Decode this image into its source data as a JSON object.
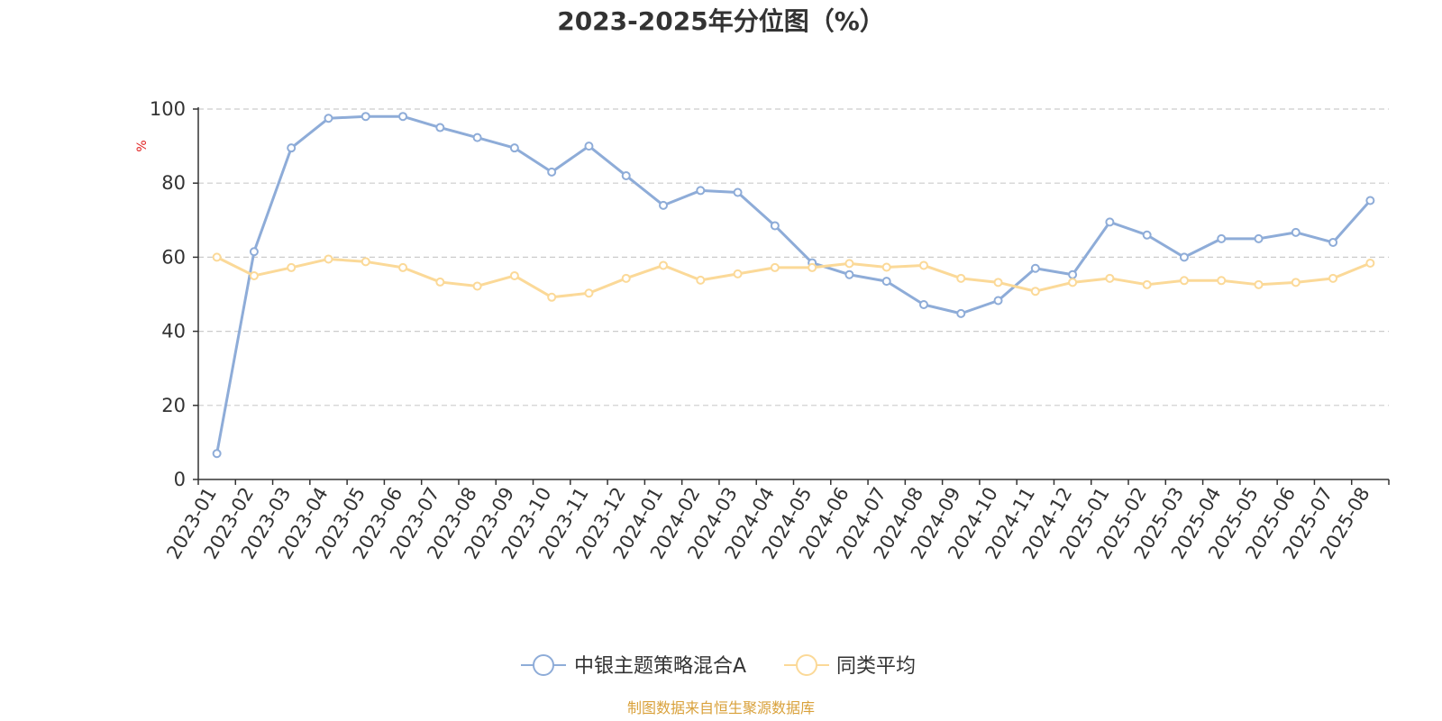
{
  "chart_data": {
    "type": "line",
    "title": "2023-2025年分位图（%）",
    "ylabel": "%",
    "ylim": [
      0,
      100
    ],
    "yticks": [
      0,
      20,
      40,
      60,
      80,
      100
    ],
    "grid": true,
    "legend_position": "bottom-center",
    "categories": [
      "2023-01",
      "2023-02",
      "2023-03",
      "2023-04",
      "2023-05",
      "2023-06",
      "2023-07",
      "2023-08",
      "2023-09",
      "2023-10",
      "2023-11",
      "2023-12",
      "2024-01",
      "2024-02",
      "2024-03",
      "2024-04",
      "2024-05",
      "2024-06",
      "2024-07",
      "2024-08",
      "2024-09",
      "2024-10",
      "2024-11",
      "2024-12",
      "2025-01",
      "2025-02",
      "2025-03",
      "2025-04",
      "2025-05",
      "2025-06",
      "2025-07",
      "2025-08"
    ],
    "series": [
      {
        "name": "中银主题策略混合A",
        "color": "#8eacd8",
        "values": [
          7,
          61.5,
          89.5,
          97.5,
          98,
          98,
          95,
          92.3,
          89.5,
          83,
          90,
          82,
          74,
          78,
          77.5,
          68.5,
          58.5,
          55.3,
          53.5,
          47.2,
          44.8,
          48.3,
          57,
          55.3,
          69.5,
          66,
          60,
          65,
          65,
          66.7,
          64,
          75.3
        ]
      },
      {
        "name": "同类平均",
        "color": "#fbd998",
        "values": [
          60,
          55,
          57.2,
          59.5,
          58.8,
          57.2,
          53.3,
          52.2,
          55,
          49.2,
          50.3,
          54.3,
          57.8,
          53.8,
          55.5,
          57.2,
          57.2,
          58.3,
          57.3,
          57.8,
          54.3,
          53.2,
          50.8,
          53.2,
          54.3,
          52.6,
          53.7,
          53.7,
          52.6,
          53.2,
          54.3,
          58.4
        ]
      }
    ]
  },
  "colors": {
    "unit_label": "#e02020",
    "source_text": "#d9a13b",
    "grid": "#cccccc",
    "axis": "#333333"
  },
  "footer": {
    "source": "制图数据来自恒生聚源数据库"
  }
}
